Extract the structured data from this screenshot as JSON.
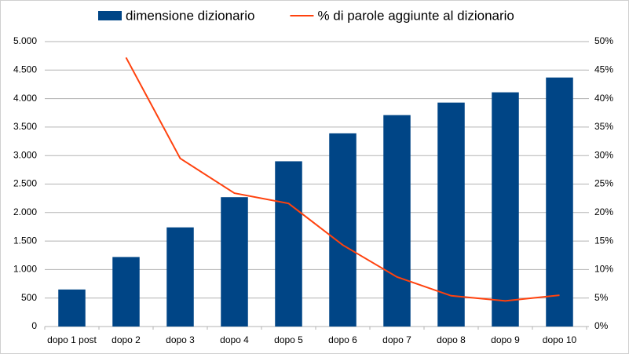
{
  "chart_data": {
    "type": "bar",
    "categories": [
      "dopo 1 post",
      "dopo 2",
      "dopo 3",
      "dopo 4",
      "dopo 5",
      "dopo 6",
      "dopo 7",
      "dopo 8",
      "dopo 9",
      "dopo 10"
    ],
    "series": [
      {
        "name": "dimensione dizionario",
        "type": "bar",
        "color": "#004586",
        "values": [
          650,
          1220,
          1740,
          2270,
          2900,
          3390,
          3710,
          3930,
          4110,
          4370
        ]
      },
      {
        "name": "% di parole aggiunte al dizionario",
        "type": "line",
        "axis": "y2",
        "color": "#ff420e",
        "values": [
          null,
          47.2,
          29.5,
          23.4,
          21.6,
          14.3,
          8.7,
          5.4,
          4.5,
          5.5
        ]
      }
    ],
    "ylim": [
      0,
      5000
    ],
    "yticks": [
      0,
      500,
      {
        "value": 1000,
        "label": "1.000"
      },
      {
        "value": 1500,
        "label": "1.500"
      },
      {
        "value": 2000,
        "label": "2.000"
      },
      {
        "value": 2500,
        "label": "2.500"
      },
      {
        "value": 3000,
        "label": "3.000"
      },
      {
        "value": 3500,
        "label": "3.500"
      },
      {
        "value": 4000,
        "label": "4.000"
      },
      {
        "value": 4500,
        "label": "4.500"
      },
      {
        "value": 5000,
        "label": "5.000"
      }
    ],
    "y2lim": [
      0,
      50
    ],
    "y2ticks": [
      {
        "value": 0,
        "label": "0%"
      },
      {
        "value": 5,
        "label": "5%"
      },
      {
        "value": 10,
        "label": "10%"
      },
      {
        "value": 15,
        "label": "15%"
      },
      {
        "value": 20,
        "label": "20%"
      },
      {
        "value": 25,
        "label": "25%"
      },
      {
        "value": 30,
        "label": "30%"
      },
      {
        "value": 35,
        "label": "35%"
      },
      {
        "value": 40,
        "label": "40%"
      },
      {
        "value": 45,
        "label": "45%"
      },
      {
        "value": 50,
        "label": "50%"
      }
    ],
    "grid": true,
    "legend": "top"
  }
}
